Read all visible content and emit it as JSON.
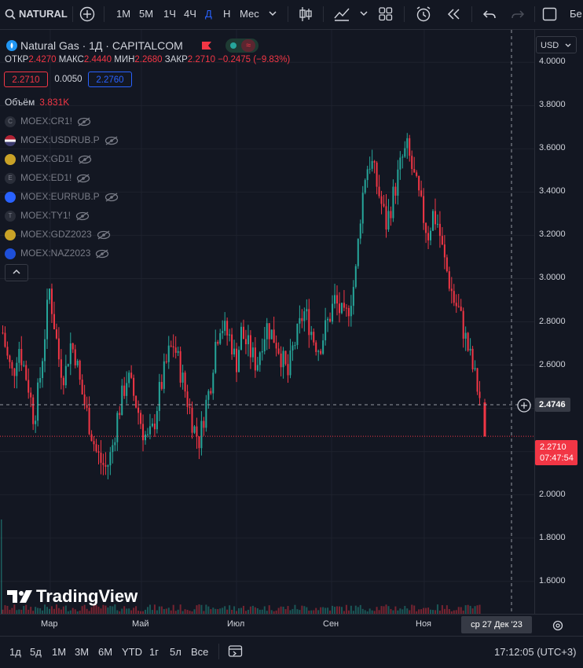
{
  "toolbar": {
    "symbol": "NATURAL",
    "intervals": [
      "1М",
      "5М",
      "1Ч",
      "4Ч",
      "Д",
      "Н",
      "Мес"
    ],
    "active_interval": "Д",
    "cut_label": "Бе"
  },
  "legend": {
    "title": "Natural Gas · 1Д · CAPITALCOM",
    "open_label": "ОТКР",
    "open": "2.4270",
    "high_label": "МАКС",
    "high": "2.4440",
    "low_label": "МИН",
    "low": "2.2680",
    "close_label": "ЗАКР",
    "close": "2.2710",
    "change": "−0.2475 (−9.83%)",
    "bid": "2.2710",
    "spread": "0.0050",
    "ask": "2.2760",
    "volume_label": "Объём",
    "volume": "3.831K",
    "symbols": [
      {
        "name": "MOEX:CR1!",
        "icon": "C"
      },
      {
        "name": "MOEX:USDRUB.P",
        "icon": ""
      },
      {
        "name": "MOEX:GD1!",
        "icon": ""
      },
      {
        "name": "MOEX:ED1!",
        "icon": "E"
      },
      {
        "name": "MOEX:EURRUB.P",
        "icon": ""
      },
      {
        "name": "MOEX:TY1!",
        "icon": "T"
      },
      {
        "name": "MOEX:GDZ2023",
        "icon": ""
      },
      {
        "name": "MOEX:NAZ2023",
        "icon": ""
      }
    ]
  },
  "price_axis": {
    "currency": "USD",
    "crosshair_price": "2.4746",
    "last_price": "2.2710",
    "countdown": "07:47:54"
  },
  "time_axis": {
    "labels": [
      "Мар",
      "Май",
      "Июл",
      "Сен",
      "Ноя"
    ],
    "crosshair_date": "ср 27 Дек '23"
  },
  "bottom": {
    "ranges": [
      "1д",
      "5д",
      "1М",
      "3М",
      "6М",
      "YTD",
      "1г",
      "5л",
      "Все"
    ],
    "clock": "17:12:05 (UTC+3)"
  },
  "brand": "TradingView",
  "colors": {
    "up": "#26a69a",
    "down": "#f23645",
    "bg": "#131722",
    "grid": "#1e222d",
    "accent": "#2962ff"
  },
  "chart_data": {
    "type": "candlestick",
    "title": "Natural Gas · 1Д · CAPITALCOM",
    "ylim": [
      1.45,
      4.15
    ],
    "y_ticks": [
      1.6,
      1.8,
      2.0,
      2.2,
      2.4,
      2.6,
      2.8,
      3.0,
      3.2,
      3.4,
      3.6,
      3.8,
      4.0
    ],
    "x_tick_labels": [
      "Мар",
      "Май",
      "Июл",
      "Сен",
      "Ноя"
    ],
    "grid": true,
    "path_closes": [
      2.75,
      2.62,
      2.55,
      2.7,
      2.6,
      2.5,
      2.35,
      2.5,
      2.72,
      2.95,
      2.78,
      2.6,
      2.55,
      2.7,
      2.65,
      2.5,
      2.4,
      2.3,
      2.2,
      2.15,
      2.12,
      2.2,
      2.35,
      2.45,
      2.55,
      2.48,
      2.4,
      2.3,
      2.25,
      2.3,
      2.45,
      2.55,
      2.65,
      2.7,
      2.6,
      2.5,
      2.4,
      2.3,
      2.25,
      2.4,
      2.5,
      2.7,
      2.8,
      2.75,
      2.72,
      2.6,
      2.75,
      2.7,
      2.65,
      2.6,
      2.72,
      2.78,
      2.74,
      2.7,
      2.62,
      2.55,
      2.68,
      2.75,
      2.85,
      2.8,
      2.72,
      2.68,
      2.75,
      2.82,
      2.9,
      2.85,
      2.8,
      2.9,
      3.0,
      3.3,
      3.5,
      3.55,
      3.45,
      3.35,
      3.25,
      3.35,
      3.45,
      3.55,
      3.6,
      3.5,
      3.4,
      3.3,
      3.2,
      3.3,
      3.25,
      3.1,
      3.0,
      2.9,
      2.85,
      2.75,
      2.65,
      2.55,
      2.45
    ],
    "last": {
      "open": 2.427,
      "high": 2.444,
      "low": 2.268,
      "close": 2.271
    }
  }
}
